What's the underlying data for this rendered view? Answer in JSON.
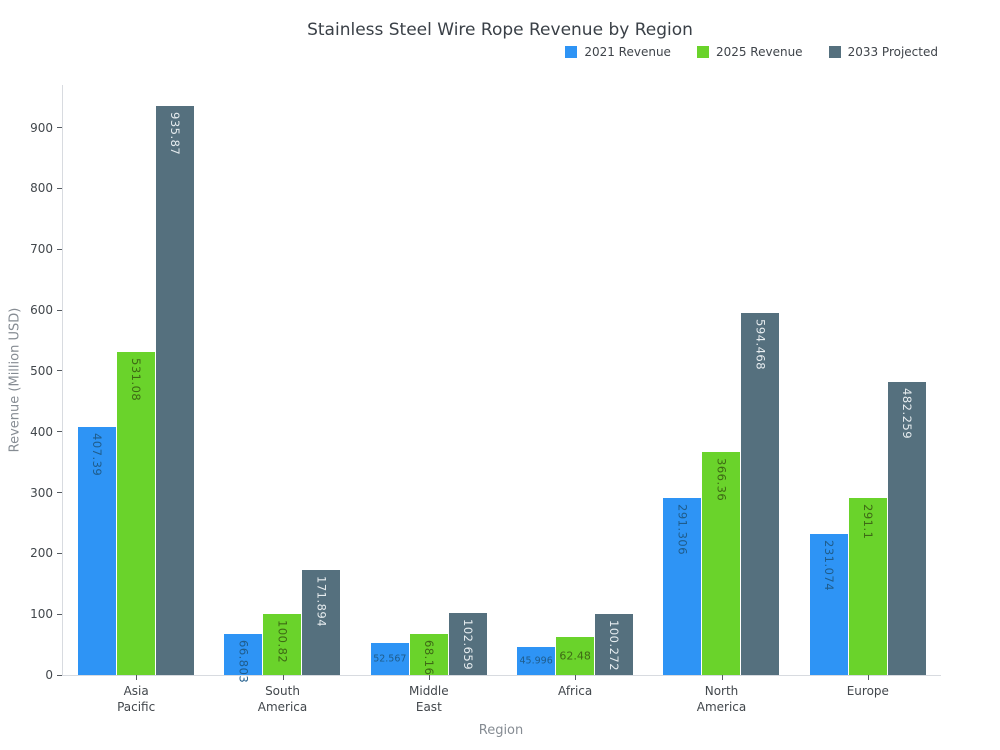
{
  "chart_data": {
    "type": "bar",
    "title": "Stainless Steel Wire Rope Revenue by Region",
    "xlabel": "Region",
    "ylabel": "Revenue (Million USD)",
    "categories": [
      "Asia Pacific",
      "South America",
      "Middle East",
      "Africa",
      "North America",
      "Europe"
    ],
    "series": [
      {
        "name": "2021 Revenue",
        "color": "#2E94F5",
        "label_color": "#1F5C8B",
        "values": [
          407.39,
          66.803,
          52.567,
          45.996,
          291.306,
          231.074
        ]
      },
      {
        "name": "2025 Revenue",
        "color": "#6AD32B",
        "label_color": "#3E6A15",
        "values": [
          531.08,
          100.82,
          68.16,
          62.48,
          366.36,
          291.1
        ]
      },
      {
        "name": "2033 Projected",
        "color": "#55707E",
        "label_color": "#E6ECEF",
        "values": [
          935.87,
          171.894,
          102.659,
          100.272,
          594.468,
          482.259
        ]
      }
    ],
    "ylim": [
      0,
      970
    ],
    "yticks": [
      0,
      100,
      200,
      300,
      400,
      500,
      600,
      700,
      800,
      900
    ],
    "grid": false,
    "legend_position": "top-right",
    "bar_labels": true,
    "axis_line_color": "#d8dbe0"
  }
}
